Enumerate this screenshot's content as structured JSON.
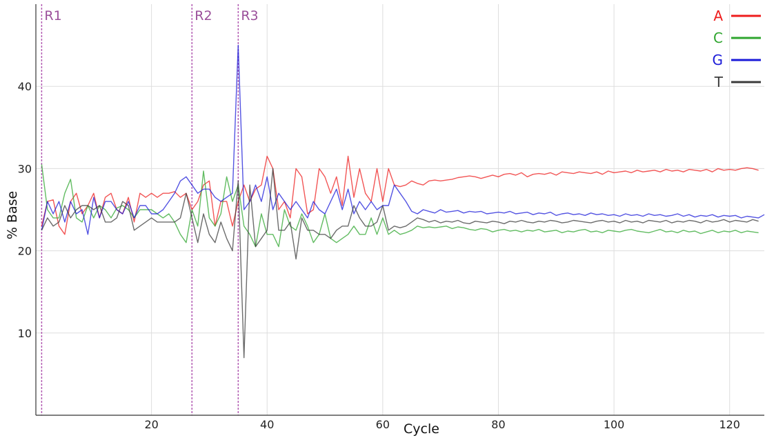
{
  "chart_data": {
    "type": "line",
    "xlabel": "Cycle",
    "ylabel": "% Base",
    "xlim": [
      0,
      126
    ],
    "ylim": [
      0,
      50
    ],
    "xticks": [
      20,
      40,
      60,
      80,
      100,
      120
    ],
    "yticks": [
      10,
      20,
      30,
      40
    ],
    "grid": true,
    "legend_position": "top-right",
    "regions": [
      {
        "label": "R1",
        "x": 1
      },
      {
        "label": "R2",
        "x": 27
      },
      {
        "label": "R3",
        "x": 35
      }
    ],
    "series": [
      {
        "name": "A",
        "color": "#ee1c1c",
        "values": [
          23,
          26,
          26.2,
          23,
          22,
          26,
          27,
          24.5,
          25.5,
          27,
          24,
          26.5,
          27,
          25,
          24.5,
          26.5,
          23.5,
          27,
          26.5,
          27,
          26.5,
          27,
          27,
          27.2,
          26.5,
          27,
          25,
          26,
          28,
          28.5,
          23,
          26,
          26,
          23,
          26,
          28,
          26,
          27.5,
          28,
          31.5,
          30,
          25,
          26,
          24,
          30,
          29,
          24.5,
          25,
          30,
          29,
          27,
          29,
          25.5,
          31.5,
          26.5,
          30,
          27,
          26,
          30,
          26,
          30,
          28,
          27.8,
          28,
          28.5,
          28.2,
          28,
          28.5,
          28.6,
          28.5,
          28.6,
          28.7,
          28.9,
          29,
          29.1,
          29,
          28.8,
          29,
          29.2,
          29,
          29.3,
          29.4,
          29.2,
          29.5,
          29,
          29.3,
          29.4,
          29.3,
          29.5,
          29.2,
          29.6,
          29.5,
          29.4,
          29.6,
          29.5,
          29.4,
          29.6,
          29.3,
          29.7,
          29.5,
          29.6,
          29.7,
          29.5,
          29.8,
          29.6,
          29.7,
          29.8,
          29.6,
          29.9,
          29.7,
          29.8,
          29.6,
          29.9,
          29.8,
          29.7,
          29.9,
          29.6,
          30,
          29.8,
          29.9,
          29.8,
          30,
          30.1,
          30,
          29.8
        ]
      },
      {
        "name": "C",
        "color": "#2ea52e",
        "values": [
          30.5,
          25,
          24,
          24,
          27,
          28.7,
          24,
          23.5,
          25.5,
          24,
          25.5,
          25,
          24,
          25.2,
          25.5,
          25,
          24,
          25,
          25,
          25,
          24.5,
          24,
          24.5,
          23.5,
          22,
          21,
          25,
          23,
          29.7,
          24,
          23,
          24.5,
          29,
          26,
          28,
          23,
          22,
          20.5,
          24.5,
          22,
          22,
          20.5,
          25,
          23,
          22.5,
          24.5,
          23,
          21,
          22,
          24.5,
          21.5,
          21,
          21.5,
          22,
          23,
          22,
          22,
          24,
          22,
          24,
          22,
          22.5,
          22,
          22.2,
          22.5,
          23,
          22.8,
          22.9,
          22.8,
          22.9,
          23,
          22.7,
          22.9,
          22.8,
          22.6,
          22.5,
          22.7,
          22.6,
          22.3,
          22.5,
          22.6,
          22.4,
          22.5,
          22.3,
          22.5,
          22.4,
          22.6,
          22.3,
          22.4,
          22.5,
          22.2,
          22.4,
          22.3,
          22.5,
          22.6,
          22.3,
          22.4,
          22.2,
          22.5,
          22.4,
          22.3,
          22.5,
          22.6,
          22.4,
          22.3,
          22.2,
          22.4,
          22.6,
          22.3,
          22.4,
          22.2,
          22.5,
          22.3,
          22.4,
          22.1,
          22.3,
          22.5,
          22.2,
          22.4,
          22.3,
          22.5,
          22.2,
          22.4,
          22.3,
          22.2
        ]
      },
      {
        "name": "G",
        "color": "#1a1ad8",
        "values": [
          22.5,
          26,
          24.5,
          26,
          23.5,
          26,
          24.5,
          25,
          22,
          26.5,
          24,
          26,
          26,
          25,
          24.5,
          26,
          24,
          25.5,
          25.5,
          24.5,
          24.5,
          25,
          26,
          27,
          28.5,
          29,
          28,
          27,
          27.5,
          27.5,
          26.5,
          26,
          26.5,
          27,
          45,
          25,
          26,
          28,
          26,
          29,
          25,
          27,
          26,
          25,
          26,
          25,
          24,
          26,
          25,
          24.5,
          26,
          27.5,
          25,
          27.5,
          24.5,
          26,
          25,
          26,
          25,
          25.5,
          25.5,
          28,
          27,
          26,
          24.8,
          24.5,
          25,
          24.8,
          24.6,
          25,
          24.7,
          24.8,
          24.9,
          24.6,
          24.8,
          24.7,
          24.8,
          24.5,
          24.6,
          24.7,
          24.6,
          24.8,
          24.5,
          24.6,
          24.7,
          24.4,
          24.6,
          24.5,
          24.7,
          24.3,
          24.5,
          24.6,
          24.4,
          24.5,
          24.3,
          24.6,
          24.4,
          24.5,
          24.3,
          24.4,
          24.2,
          24.5,
          24.3,
          24.4,
          24.2,
          24.5,
          24.3,
          24.4,
          24.2,
          24.3,
          24.5,
          24.2,
          24.4,
          24.1,
          24.3,
          24.2,
          24.4,
          24.1,
          24.3,
          24.2,
          24.3,
          24,
          24.2,
          24.1,
          24,
          24.4
        ]
      },
      {
        "name": "T",
        "color": "#3a3a3a",
        "values": [
          22.5,
          24,
          23,
          23.5,
          25.5,
          24,
          25,
          25.5,
          25.5,
          25,
          25.5,
          23.5,
          23.5,
          24,
          26,
          25.5,
          22.5,
          23,
          23.5,
          24,
          23.5,
          23.5,
          23.5,
          23.5,
          24,
          27,
          24,
          21,
          24.5,
          22,
          21,
          23.5,
          21.5,
          20,
          28.5,
          7,
          28,
          20.5,
          21.5,
          22.5,
          30,
          22.5,
          22.5,
          23.5,
          19,
          24,
          22.5,
          22.5,
          22,
          22,
          21.5,
          22.5,
          23,
          23,
          25.5,
          24,
          23,
          23,
          23.5,
          25.5,
          22.5,
          23,
          22.8,
          23,
          23.5,
          24,
          23.8,
          23.5,
          23.7,
          23.4,
          23.6,
          23.5,
          23.7,
          23.4,
          23.3,
          23.6,
          23.5,
          23.4,
          23.6,
          23.5,
          23.3,
          23.6,
          23.5,
          23.7,
          23.5,
          23.4,
          23.6,
          23.5,
          23.7,
          23.6,
          23.4,
          23.5,
          23.7,
          23.6,
          23.5,
          23.4,
          23.6,
          23.7,
          23.5,
          23.6,
          23.4,
          23.7,
          23.5,
          23.6,
          23.4,
          23.7,
          23.6,
          23.5,
          23.7,
          23.4,
          23.6,
          23.5,
          23.7,
          23.6,
          23.4,
          23.7,
          23.5,
          23.6,
          23.8,
          23.5,
          23.7,
          23.6,
          23.5,
          23.8,
          23.6
        ]
      }
    ]
  }
}
